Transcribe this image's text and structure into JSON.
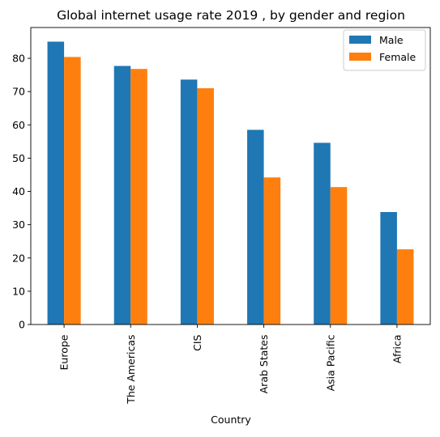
{
  "chart_data": {
    "type": "bar",
    "title": "Global internet usage rate 2019 , by gender and region",
    "xlabel": "Country",
    "ylabel": "",
    "categories": [
      "Europe",
      "The Americas",
      "CIS",
      "Arab States",
      "Asia Pacific",
      "Africa"
    ],
    "series": [
      {
        "name": "Male",
        "color": "#1f77b4",
        "values": [
          85.0,
          77.7,
          73.6,
          58.5,
          54.6,
          33.8
        ]
      },
      {
        "name": "Female",
        "color": "#ff7f0e",
        "values": [
          80.4,
          76.8,
          71.0,
          44.2,
          41.3,
          22.6
        ]
      }
    ],
    "ylim": [
      0,
      89.25
    ],
    "yticks": [
      0,
      10,
      20,
      30,
      40,
      50,
      60,
      70,
      80
    ],
    "grid": false,
    "legend_position": "top-right"
  }
}
